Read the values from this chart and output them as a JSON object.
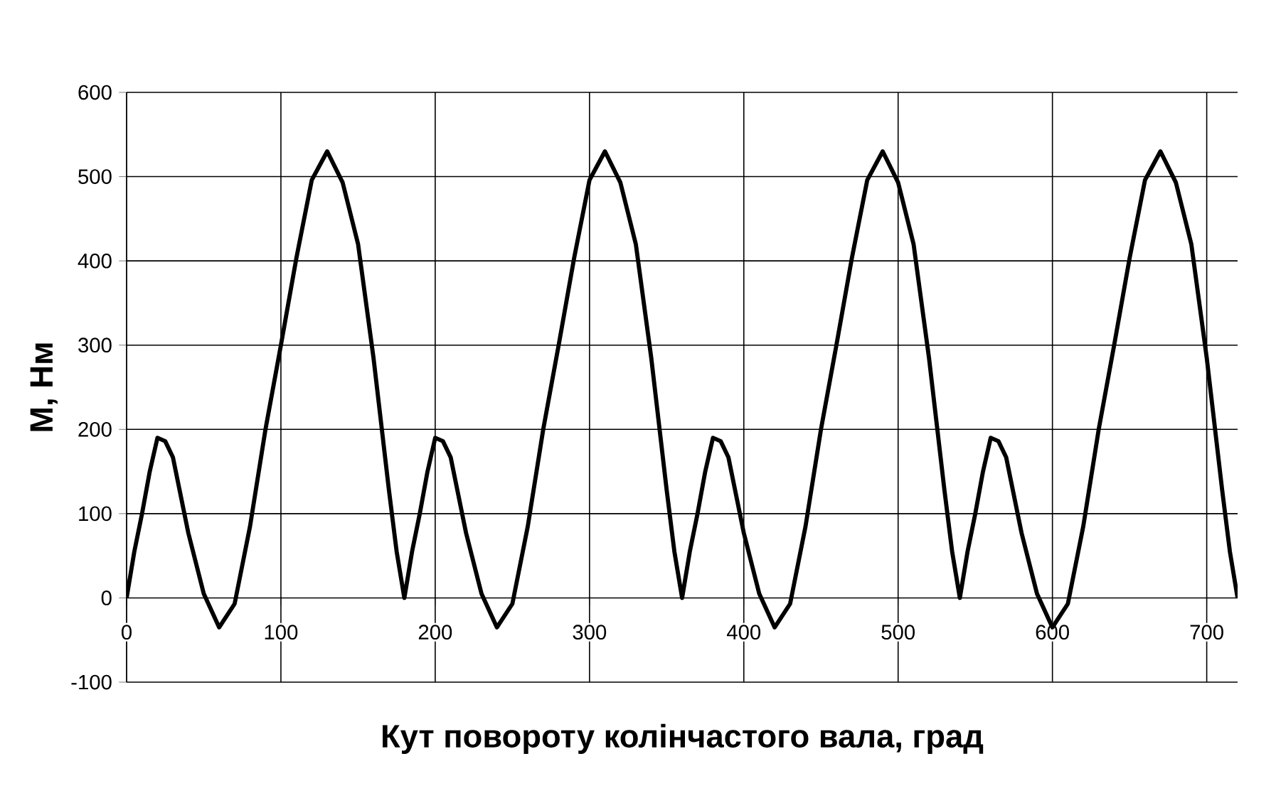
{
  "chart_data": {
    "type": "line",
    "xlabel": "Кут повороту колінчастого вала, град",
    "ylabel": "М, Нм",
    "x": [
      0,
      5,
      10,
      15,
      20,
      25,
      30,
      40,
      50,
      60,
      70,
      80,
      90,
      100,
      110,
      120,
      130,
      140,
      150,
      160,
      170,
      175,
      180,
      185,
      190,
      195,
      200,
      205,
      210,
      220,
      230,
      240,
      250,
      260,
      270,
      280,
      290,
      300,
      310,
      320,
      330,
      340,
      350,
      355,
      360,
      365,
      370,
      375,
      380,
      385,
      390,
      400,
      410,
      420,
      430,
      440,
      450,
      460,
      470,
      480,
      490,
      500,
      510,
      520,
      530,
      535,
      540,
      545,
      550,
      555,
      560,
      565,
      570,
      580,
      590,
      600,
      610,
      620,
      630,
      640,
      650,
      660,
      670,
      680,
      690,
      700,
      710,
      715,
      720
    ],
    "series": [
      {
        "color": "#000000",
        "values": [
          0,
          55,
          100,
          150,
          190,
          186,
          167,
          77,
          5,
          -35,
          -7,
          85,
          200,
          300,
          403,
          496,
          530,
          493,
          420,
          285,
          128,
          55,
          0,
          55,
          100,
          150,
          190,
          186,
          167,
          77,
          5,
          -35,
          -7,
          85,
          200,
          300,
          403,
          496,
          530,
          493,
          420,
          285,
          128,
          55,
          0,
          55,
          100,
          150,
          190,
          186,
          167,
          77,
          5,
          -35,
          -7,
          85,
          200,
          300,
          403,
          496,
          530,
          493,
          420,
          285,
          128,
          55,
          0,
          55,
          100,
          150,
          190,
          186,
          167,
          77,
          5,
          -35,
          -7,
          85,
          200,
          300,
          403,
          496,
          530,
          493,
          420,
          285,
          128,
          55,
          0
        ]
      }
    ],
    "xlim": [
      0,
      720
    ],
    "ylim": [
      -100,
      600
    ],
    "xticks": [
      0,
      100,
      200,
      300,
      400,
      500,
      600,
      700
    ],
    "yticks": [
      -100,
      0,
      100,
      200,
      300,
      400,
      500,
      600
    ],
    "grid": true,
    "marker": "none",
    "line_style": "solid"
  }
}
